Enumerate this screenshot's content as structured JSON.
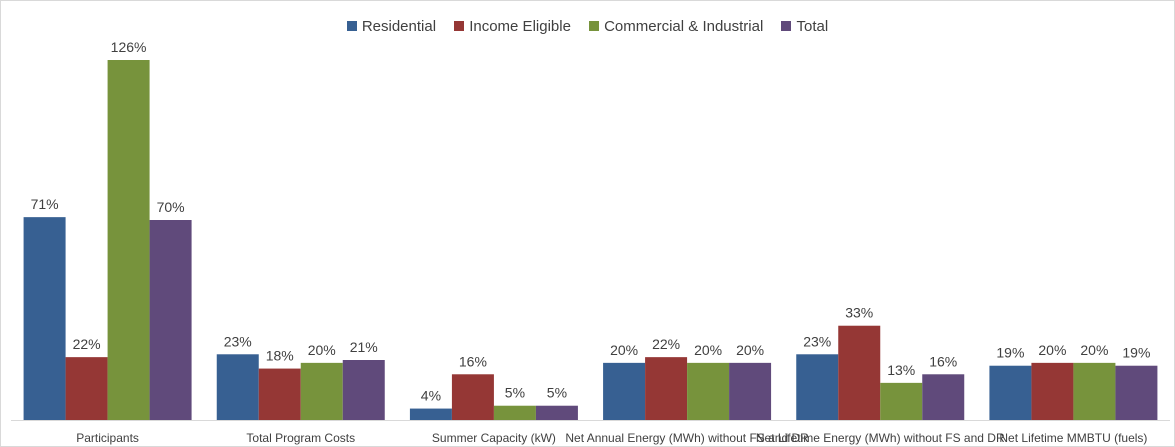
{
  "chart_data": {
    "type": "bar",
    "title": "",
    "xlabel": "",
    "ylabel": "",
    "ylim": [
      0,
      140
    ],
    "grid": false,
    "legend": "top",
    "categories": [
      "Participants",
      "Total Program Costs",
      "Summer Capacity (kW)",
      "Net Annual Energy (MWh) without FS and DR",
      "Net Lifetime Energy (MWh) without FS and DR",
      "Net Lifetime MMBTU (fuels)"
    ],
    "series": [
      {
        "name": "Residential",
        "color": "#376092",
        "values": [
          71,
          23,
          4,
          20,
          23,
          19
        ],
        "labels": [
          "71%",
          "23%",
          "4%",
          "20%",
          "23%",
          "19%"
        ]
      },
      {
        "name": "Income Eligible",
        "color": "#953735",
        "values": [
          22,
          18,
          16,
          22,
          33,
          20
        ],
        "labels": [
          "22%",
          "18%",
          "16%",
          "22%",
          "33%",
          "20%"
        ]
      },
      {
        "name": "Commercial & Industrial",
        "color": "#77933c",
        "values": [
          126,
          20,
          5,
          20,
          13,
          20
        ],
        "labels": [
          "126%",
          "20%",
          "5%",
          "20%",
          "13%",
          "20%"
        ]
      },
      {
        "name": "Total",
        "color": "#604a7b",
        "values": [
          70,
          21,
          5,
          20,
          16,
          19
        ],
        "labels": [
          "70%",
          "21%",
          "5%",
          "20%",
          "16%",
          "19%"
        ]
      }
    ]
  }
}
